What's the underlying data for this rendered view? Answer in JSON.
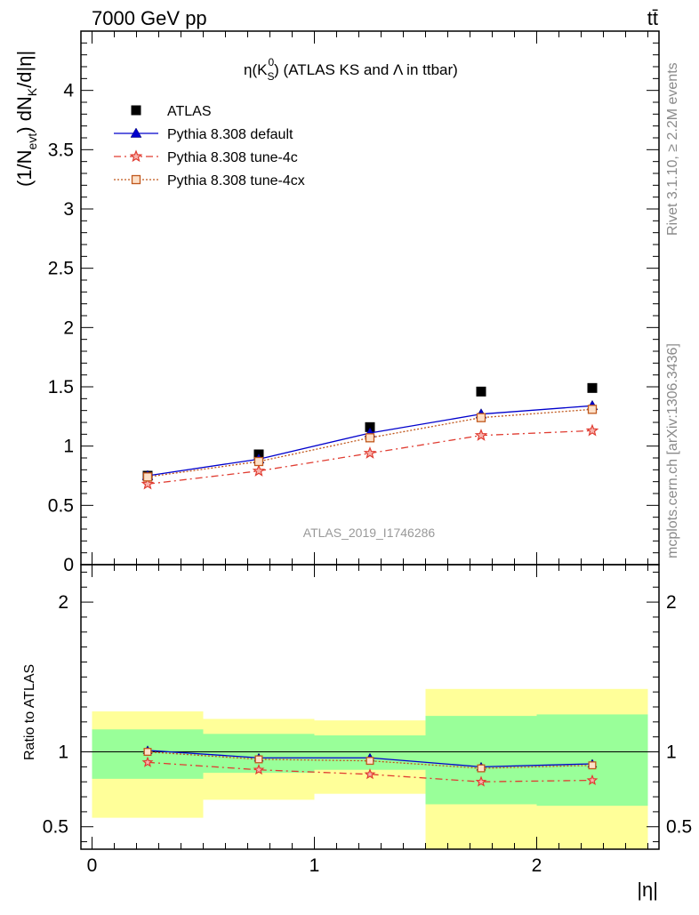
{
  "header": {
    "energy_label": "7000 GeV pp",
    "process_label": "tt̄",
    "plot_title_prefix": "η(K",
    "plot_title_sub": "S",
    "plot_title_sup": "0",
    "plot_title_suffix": ") (ATLAS KS and Λ in ttbar)",
    "watermark": "ATLAS_2019_I1746286",
    "rivet_label": "Rivet 3.1.10, ≥ 2.2M events",
    "mcplots_label": "mcplots.cern.ch [arXiv:1306.3436]"
  },
  "axes": {
    "main_ylabel": "(1/N_evt) dN_K/d|η|",
    "ratio_ylabel": "Ratio to ATLAS",
    "xlabel": "|η|"
  },
  "chart_data": [
    {
      "type": "scatter",
      "panel": "main",
      "x": [
        0.25,
        0.75,
        1.25,
        1.75,
        2.25
      ],
      "bin_edges": [
        0,
        0.5,
        1.0,
        1.5,
        2.0,
        2.5
      ],
      "xlim": [
        -0.05,
        2.55
      ],
      "ylim": [
        0,
        4.5
      ],
      "yticks": [
        0,
        0.5,
        1,
        1.5,
        2,
        2.5,
        3,
        3.5,
        4
      ],
      "ytick_labels": [
        "0",
        "0.5",
        "1",
        "1.5",
        "2",
        "2.5",
        "3",
        "3.5",
        "4"
      ],
      "legend_position": "top-left",
      "series": [
        {
          "name": "ATLAS",
          "marker": "square",
          "line": "none",
          "color": "#000000",
          "values": [
            0.75,
            0.93,
            1.16,
            1.46,
            1.49
          ]
        },
        {
          "name": "Pythia 8.308 default",
          "marker": "triangle",
          "line": "solid",
          "color": "#0000cc",
          "values": [
            0.75,
            0.89,
            1.11,
            1.27,
            1.34
          ]
        },
        {
          "name": "Pythia 8.308 tune-4c",
          "marker": "star",
          "line": "dashdot",
          "color": "#e03c31",
          "values": [
            0.68,
            0.79,
            0.94,
            1.09,
            1.13
          ]
        },
        {
          "name": "Pythia 8.308 tune-4cx",
          "marker": "open-square",
          "line": "dotted",
          "color": "#c0571c",
          "values": [
            0.74,
            0.87,
            1.07,
            1.24,
            1.31
          ]
        }
      ]
    },
    {
      "type": "line",
      "panel": "ratio",
      "x": [
        0.25,
        0.75,
        1.25,
        1.75,
        2.25
      ],
      "xlim": [
        -0.05,
        2.55
      ],
      "ylim": [
        0.35,
        2.25
      ],
      "xticks": [
        0,
        1,
        2
      ],
      "xtick_labels": [
        "0",
        "1",
        "2"
      ],
      "yticks": [
        0.5,
        1,
        2
      ],
      "ytick_labels": [
        "0.5",
        "1",
        "2"
      ],
      "reference_line": 1,
      "bands": {
        "bin_edges": [
          0,
          0.5,
          1.0,
          1.5,
          2.0,
          2.5
        ],
        "inner_low": [
          0.82,
          0.86,
          0.88,
          0.65,
          0.64
        ],
        "inner_high": [
          1.15,
          1.12,
          1.11,
          1.24,
          1.25
        ],
        "outer_low": [
          0.56,
          0.68,
          0.72,
          0.35,
          0.35
        ],
        "outer_high": [
          1.27,
          1.22,
          1.21,
          1.42,
          1.42
        ],
        "inner_color": "#99ff99",
        "outer_color": "#ffff99"
      },
      "series": [
        {
          "name": "Pythia 8.308 default",
          "marker": "triangle",
          "line": "solid",
          "color": "#0000cc",
          "values": [
            1.01,
            0.96,
            0.96,
            0.9,
            0.92
          ]
        },
        {
          "name": "Pythia 8.308 tune-4c",
          "marker": "star",
          "line": "dashdot",
          "color": "#e03c31",
          "values": [
            0.93,
            0.88,
            0.85,
            0.8,
            0.81
          ]
        },
        {
          "name": "Pythia 8.308 tune-4cx",
          "marker": "open-square",
          "line": "dotted",
          "color": "#c0571c",
          "values": [
            1.0,
            0.95,
            0.94,
            0.89,
            0.91
          ]
        }
      ]
    }
  ]
}
